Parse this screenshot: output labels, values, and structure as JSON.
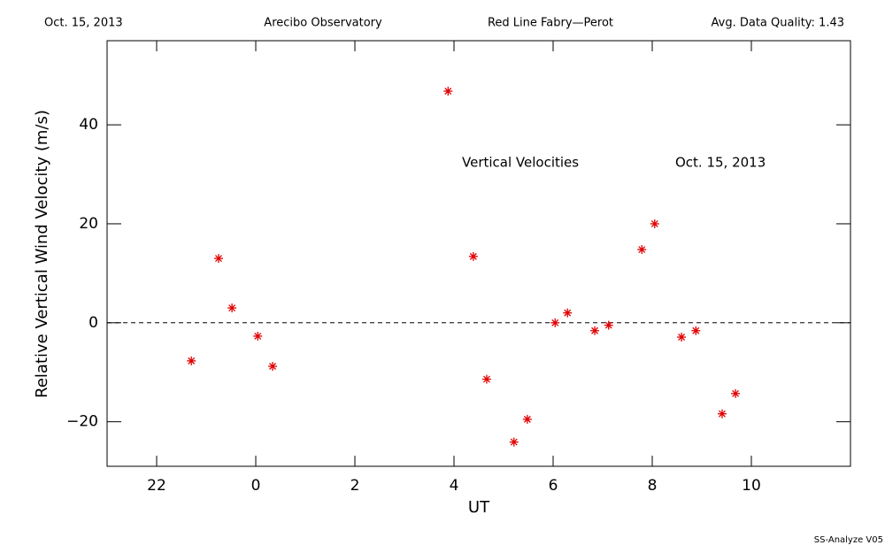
{
  "chart_data": {
    "type": "scatter",
    "header": [
      "Oct. 15, 2013",
      "Arecibo Observatory",
      "Red Line Fabry—Perot",
      "Avg. Data Quality: 1.43"
    ],
    "annotations": [
      "Vertical Velocities",
      "Oct. 15, 2013"
    ],
    "x_label": "UT",
    "y_label": "Relative Vertical Wind Velocity (m/s)",
    "footer": "SS-Analyze V05",
    "series": [
      {
        "color": "#e00000",
        "x": [
          -1.3,
          -0.75,
          -0.48,
          0.04,
          0.34,
          3.88,
          4.39,
          4.66,
          5.21,
          5.48,
          6.04,
          6.29,
          6.84,
          7.12,
          7.79,
          8.05,
          8.59,
          8.88,
          9.41,
          9.68
        ],
        "values": [
          -7.7,
          13.0,
          3.0,
          -2.7,
          -8.8,
          46.8,
          13.4,
          -11.4,
          -24.1,
          -19.5,
          0.0,
          2.0,
          -1.6,
          -0.5,
          14.8,
          20.0,
          -2.9,
          -1.6,
          -18.4,
          -14.3
        ]
      }
    ],
    "reference_line": 0,
    "xlim": [
      -3,
      12
    ],
    "xticks": [
      {
        "value": -2,
        "label": "22"
      },
      0,
      2,
      4,
      6,
      8,
      10
    ],
    "ylim": [
      -29,
      57
    ],
    "yticks": [
      {
        "value": -20,
        "label": "−20"
      },
      0,
      20,
      40
    ]
  }
}
